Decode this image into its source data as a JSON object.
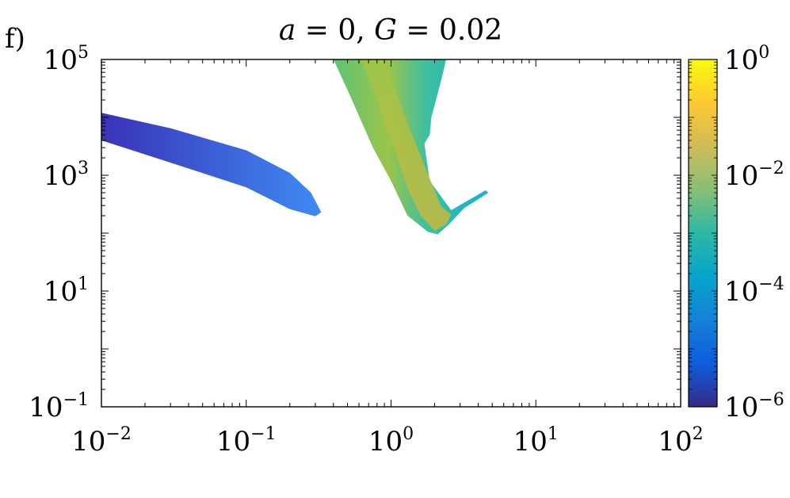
{
  "panel_label": "f)",
  "title": "a = 0, G = 0.02",
  "colors": {
    "band_low": "#3a38c8",
    "band_high": "#3a7cf0",
    "fan_edge": "#17b8c8",
    "fan_mid": "#7ac840",
    "fan_core": "#c4b83a",
    "parula_stops": [
      "#352a87",
      "#0f5cdd",
      "#1481d6",
      "#06a4ca",
      "#2eb7a4",
      "#87bf77",
      "#d1bb59",
      "#fec832",
      "#f9fb0e"
    ]
  },
  "chart_data": {
    "type": "heatmap",
    "title": "a = 0, G = 0.02",
    "xlabel": "",
    "ylabel": "",
    "x_scale": "log",
    "y_scale": "log",
    "xlim": [
      0.01,
      100
    ],
    "ylim": [
      0.1,
      100000
    ],
    "colorbar": {
      "scale": "log",
      "range": [
        1e-06,
        1
      ],
      "colormap": "parula"
    },
    "x_ticks": [
      {
        "base": "10",
        "exp": "−2",
        "value": 0.01
      },
      {
        "base": "10",
        "exp": "−1",
        "value": 0.1
      },
      {
        "base": "10",
        "exp": "0",
        "value": 1
      },
      {
        "base": "10",
        "exp": "1",
        "value": 10
      },
      {
        "base": "10",
        "exp": "2",
        "value": 100
      }
    ],
    "y_ticks": [
      {
        "base": "10",
        "exp": "−1",
        "value": 0.1
      },
      {
        "base": "10",
        "exp": "1",
        "value": 10
      },
      {
        "base": "10",
        "exp": "3",
        "value": 1000
      },
      {
        "base": "10",
        "exp": "5",
        "value": 100000
      }
    ],
    "colorbar_ticks": [
      {
        "base": "10",
        "exp": "−6",
        "value": 1e-06
      },
      {
        "base": "10",
        "exp": "−4",
        "value": 0.0001
      },
      {
        "base": "10",
        "exp": "−2",
        "value": 0.01
      },
      {
        "base": "10",
        "exp": "0",
        "value": 1
      }
    ],
    "regions": [
      {
        "name": "left-band",
        "color_range": [
          1e-06,
          1e-05
        ],
        "outline": [
          [
            0.01,
            12000
          ],
          [
            0.03,
            6500
          ],
          [
            0.1,
            2700
          ],
          [
            0.2,
            1100
          ],
          [
            0.28,
            500
          ],
          [
            0.33,
            230
          ],
          [
            0.3,
            195
          ],
          [
            0.2,
            260
          ],
          [
            0.1,
            620
          ],
          [
            0.03,
            1650
          ],
          [
            0.01,
            4000
          ]
        ]
      },
      {
        "name": "fan-region",
        "color_range": [
          0.0001,
          0.03
        ],
        "outline": [
          [
            0.4,
            100000
          ],
          [
            2.4,
            100000
          ],
          [
            2.2,
            40000
          ],
          [
            1.9,
            10000
          ],
          [
            1.85,
            5000
          ],
          [
            1.7,
            3500
          ],
          [
            1.85,
            800
          ],
          [
            2.6,
            250
          ],
          [
            4.5,
            550
          ],
          [
            4.7,
            500
          ],
          [
            3.2,
            270
          ],
          [
            2.5,
            140
          ],
          [
            2.1,
            95
          ],
          [
            1.8,
            105
          ],
          [
            1.3,
            200
          ],
          [
            1.0,
            800
          ],
          [
            0.75,
            3000
          ],
          [
            0.5,
            30000
          ]
        ]
      }
    ]
  }
}
